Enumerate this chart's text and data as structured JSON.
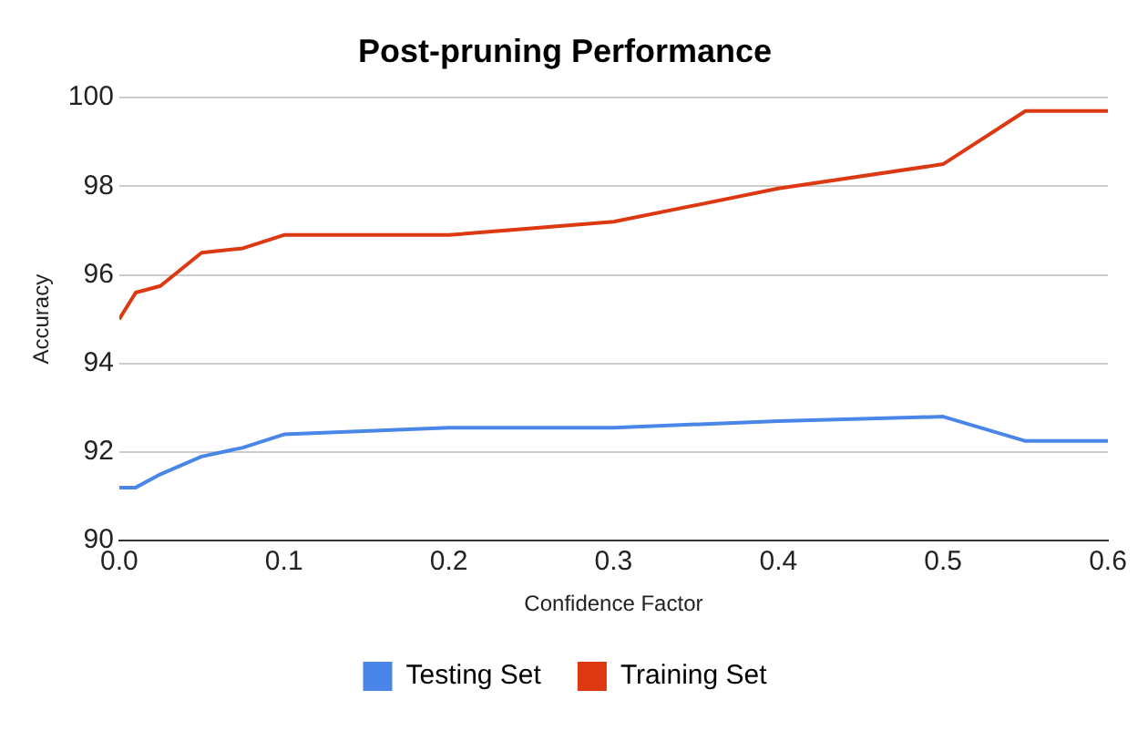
{
  "chart_data": {
    "type": "line",
    "title": "Post-pruning Performance",
    "xlabel": "Confidence Factor",
    "ylabel": "Accuracy",
    "series": [
      {
        "name": "Testing Set",
        "color": "#4a86e8",
        "x": [
          0,
          0.01,
          0.025,
          0.05,
          0.075,
          0.1,
          0.2,
          0.3,
          0.4,
          0.5,
          0.55,
          0.6
        ],
        "values": [
          91.2,
          91.2,
          91.5,
          91.9,
          92.1,
          92.4,
          92.55,
          92.55,
          92.7,
          92.8,
          92.25,
          92.25
        ]
      },
      {
        "name": "Training Set",
        "color": "#dc3912",
        "x": [
          0,
          0.01,
          0.025,
          0.05,
          0.075,
          0.1,
          0.2,
          0.3,
          0.4,
          0.5,
          0.55,
          0.6
        ],
        "values": [
          95.0,
          95.6,
          95.75,
          96.5,
          96.6,
          96.9,
          96.9,
          97.2,
          97.95,
          98.5,
          99.7,
          99.7
        ]
      }
    ],
    "xlim": [
      0,
      0.6
    ],
    "xticks": [
      {
        "value": 0,
        "label": "0.0"
      },
      0.1,
      0.2,
      0.3,
      0.4,
      0.5,
      0.6
    ],
    "ylim": [
      90,
      100
    ],
    "yticks": [
      90,
      92,
      94,
      96,
      98,
      100
    ],
    "grid": "y",
    "legend": "bottom",
    "marker": "none",
    "line_style": "solid"
  }
}
